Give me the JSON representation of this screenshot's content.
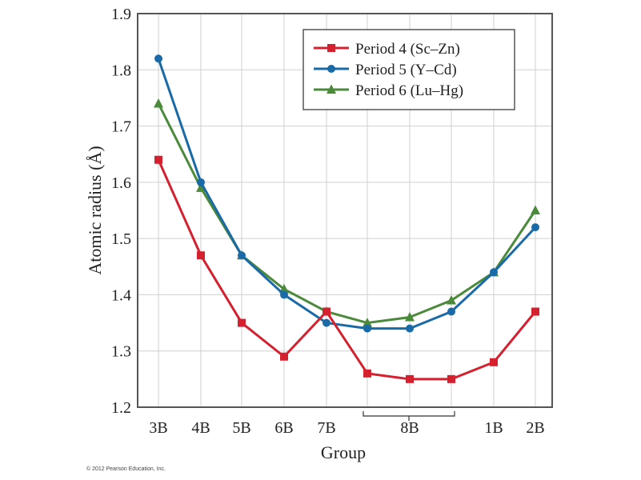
{
  "chart_data": {
    "type": "line",
    "title": "",
    "xlabel": "Group",
    "ylabel": "Atomic radius (Å)",
    "categories": [
      "3B",
      "4B",
      "5B",
      "6B",
      "7B",
      "8B",
      "8B",
      "8B",
      "1B",
      "2B"
    ],
    "tick_labels": [
      "3B",
      "4B",
      "5B",
      "6B",
      "7B",
      "8B",
      "1B",
      "2B"
    ],
    "ylim": [
      1.2,
      1.9
    ],
    "yticks": [
      "1.2",
      "1.3",
      "1.4",
      "1.5",
      "1.6",
      "1.7",
      "1.8",
      "1.9"
    ],
    "grid": true,
    "legend_position": "top-right",
    "series": [
      {
        "name": "Period 4 (Sc–Zn)",
        "color": "#d5202f",
        "marker": "square",
        "values": [
          1.64,
          1.47,
          1.35,
          1.29,
          1.37,
          1.26,
          1.25,
          1.25,
          1.28,
          1.37
        ]
      },
      {
        "name": "Period 5 (Y–Cd)",
        "color": "#1a6aa8",
        "marker": "circle",
        "values": [
          1.82,
          1.6,
          1.47,
          1.4,
          1.35,
          1.34,
          1.34,
          1.37,
          1.44,
          1.52
        ]
      },
      {
        "name": "Period 6 (Lu–Hg)",
        "color": "#4a8a3a",
        "marker": "triangle",
        "values": [
          1.74,
          1.59,
          1.47,
          1.41,
          1.37,
          1.35,
          1.36,
          1.39,
          1.44,
          1.55
        ]
      }
    ]
  },
  "copyright": "© 2012 Pearson Education, Inc."
}
